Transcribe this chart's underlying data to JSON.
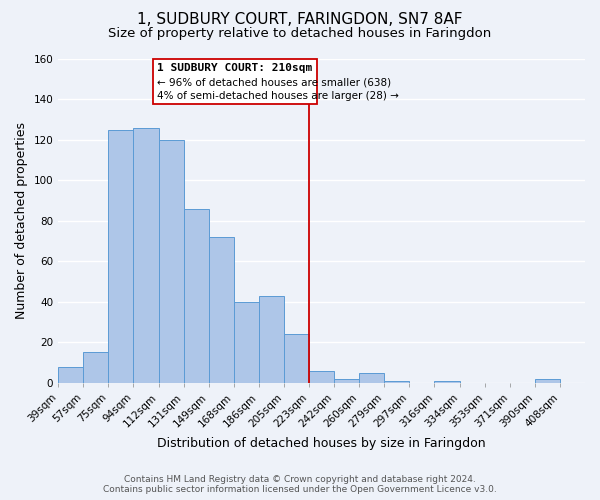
{
  "title": "1, SUDBURY COURT, FARINGDON, SN7 8AF",
  "subtitle": "Size of property relative to detached houses in Faringdon",
  "xlabel": "Distribution of detached houses by size in Faringdon",
  "ylabel": "Number of detached properties",
  "bar_labels": [
    "39sqm",
    "57sqm",
    "75sqm",
    "94sqm",
    "112sqm",
    "131sqm",
    "149sqm",
    "168sqm",
    "186sqm",
    "205sqm",
    "223sqm",
    "242sqm",
    "260sqm",
    "279sqm",
    "297sqm",
    "316sqm",
    "334sqm",
    "353sqm",
    "371sqm",
    "390sqm",
    "408sqm"
  ],
  "bar_values": [
    8,
    15,
    125,
    126,
    120,
    86,
    72,
    40,
    43,
    24,
    6,
    2,
    5,
    1,
    0,
    1,
    0,
    0,
    0,
    2,
    0
  ],
  "bar_color": "#aec6e8",
  "bar_edge_color": "#5b9bd5",
  "ylim": [
    0,
    160
  ],
  "yticks": [
    0,
    20,
    40,
    60,
    80,
    100,
    120,
    140,
    160
  ],
  "vline_x_index": 9.5,
  "vline_color": "#cc0000",
  "annotation_title": "1 SUDBURY COURT: 210sqm",
  "annotation_line1": "← 96% of detached houses are smaller (638)",
  "annotation_line2": "4% of semi-detached houses are larger (28) →",
  "footnote1": "Contains HM Land Registry data © Crown copyright and database right 2024.",
  "footnote2": "Contains public sector information licensed under the Open Government Licence v3.0.",
  "background_color": "#eef2f9",
  "grid_color": "#ffffff",
  "title_fontsize": 11,
  "subtitle_fontsize": 9.5,
  "xlabel_fontsize": 9,
  "ylabel_fontsize": 9,
  "tick_fontsize": 7.5,
  "footnote_fontsize": 6.5
}
